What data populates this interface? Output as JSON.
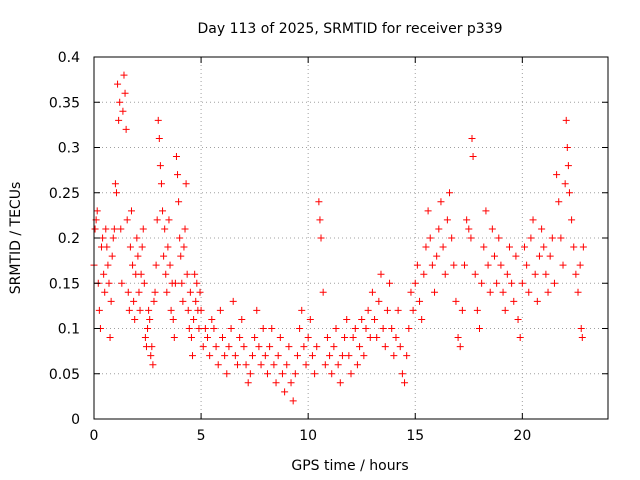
{
  "chart_data": {
    "type": "scatter",
    "title": "Day 113 of 2025, SRMTID for receiver p339",
    "xlabel": "GPS time / hours",
    "ylabel": "SRMTID / TECUs",
    "xlim": [
      0,
      24
    ],
    "ylim": [
      0,
      0.4
    ],
    "x_ticks": [
      0,
      5,
      10,
      15,
      20
    ],
    "x_tick_labels": [
      "0",
      "5",
      "10",
      "15",
      "20"
    ],
    "y_ticks": [
      0,
      0.05,
      0.1,
      0.15,
      0.2,
      0.25,
      0.3,
      0.35,
      0.4
    ],
    "y_tick_labels": [
      "0",
      "0.05",
      "0.1",
      "0.15",
      "0.2",
      "0.25",
      "0.3",
      "0.35",
      "0.4"
    ],
    "grid": true,
    "marker": "+",
    "colors": {
      "marker": "#ff0000",
      "grid": "#a0a0a0",
      "axis": "#000000"
    },
    "series": [
      {
        "name": "SRMTID",
        "points": [
          [
            0.0,
            0.17
          ],
          [
            0.05,
            0.21
          ],
          [
            0.1,
            0.22
          ],
          [
            0.15,
            0.23
          ],
          [
            0.2,
            0.15
          ],
          [
            0.25,
            0.12
          ],
          [
            0.3,
            0.1
          ],
          [
            0.35,
            0.19
          ],
          [
            0.4,
            0.2
          ],
          [
            0.45,
            0.16
          ],
          [
            0.5,
            0.14
          ],
          [
            0.55,
            0.21
          ],
          [
            0.6,
            0.19
          ],
          [
            0.65,
            0.17
          ],
          [
            0.7,
            0.15
          ],
          [
            0.75,
            0.09
          ],
          [
            0.8,
            0.13
          ],
          [
            0.85,
            0.18
          ],
          [
            0.9,
            0.2
          ],
          [
            0.95,
            0.21
          ],
          [
            1.0,
            0.26
          ],
          [
            1.05,
            0.25
          ],
          [
            1.1,
            0.37
          ],
          [
            1.15,
            0.33
          ],
          [
            1.2,
            0.35
          ],
          [
            1.25,
            0.21
          ],
          [
            1.3,
            0.15
          ],
          [
            1.35,
            0.34
          ],
          [
            1.4,
            0.38
          ],
          [
            1.45,
            0.36
          ],
          [
            1.5,
            0.32
          ],
          [
            1.55,
            0.22
          ],
          [
            1.6,
            0.14
          ],
          [
            1.65,
            0.12
          ],
          [
            1.7,
            0.19
          ],
          [
            1.75,
            0.23
          ],
          [
            1.8,
            0.17
          ],
          [
            1.85,
            0.13
          ],
          [
            1.9,
            0.11
          ],
          [
            1.95,
            0.16
          ],
          [
            2.0,
            0.2
          ],
          [
            2.05,
            0.18
          ],
          [
            2.1,
            0.14
          ],
          [
            2.15,
            0.12
          ],
          [
            2.2,
            0.16
          ],
          [
            2.25,
            0.19
          ],
          [
            2.3,
            0.21
          ],
          [
            2.35,
            0.15
          ],
          [
            2.4,
            0.09
          ],
          [
            2.45,
            0.08
          ],
          [
            2.5,
            0.1
          ],
          [
            2.55,
            0.12
          ],
          [
            2.6,
            0.11
          ],
          [
            2.65,
            0.07
          ],
          [
            2.7,
            0.08
          ],
          [
            2.75,
            0.06
          ],
          [
            2.8,
            0.13
          ],
          [
            2.85,
            0.14
          ],
          [
            2.9,
            0.17
          ],
          [
            2.95,
            0.22
          ],
          [
            3.0,
            0.33
          ],
          [
            3.05,
            0.31
          ],
          [
            3.1,
            0.28
          ],
          [
            3.15,
            0.26
          ],
          [
            3.2,
            0.23
          ],
          [
            3.25,
            0.18
          ],
          [
            3.3,
            0.21
          ],
          [
            3.35,
            0.16
          ],
          [
            3.4,
            0.14
          ],
          [
            3.45,
            0.19
          ],
          [
            3.5,
            0.22
          ],
          [
            3.55,
            0.17
          ],
          [
            3.6,
            0.12
          ],
          [
            3.65,
            0.15
          ],
          [
            3.7,
            0.11
          ],
          [
            3.75,
            0.09
          ],
          [
            3.8,
            0.15
          ],
          [
            3.85,
            0.29
          ],
          [
            3.9,
            0.27
          ],
          [
            3.95,
            0.24
          ],
          [
            4.0,
            0.2
          ],
          [
            4.05,
            0.18
          ],
          [
            4.1,
            0.15
          ],
          [
            4.15,
            0.13
          ],
          [
            4.2,
            0.19
          ],
          [
            4.25,
            0.21
          ],
          [
            4.3,
            0.26
          ],
          [
            4.35,
            0.16
          ],
          [
            4.4,
            0.12
          ],
          [
            4.45,
            0.1
          ],
          [
            4.5,
            0.14
          ],
          [
            4.55,
            0.09
          ],
          [
            4.6,
            0.07
          ],
          [
            4.65,
            0.11
          ],
          [
            4.7,
            0.16
          ],
          [
            4.75,
            0.13
          ],
          [
            4.8,
            0.15
          ],
          [
            4.85,
            0.12
          ],
          [
            4.9,
            0.1
          ],
          [
            4.95,
            0.14
          ],
          [
            5.0,
            0.12
          ],
          [
            5.1,
            0.08
          ],
          [
            5.2,
            0.1
          ],
          [
            5.3,
            0.09
          ],
          [
            5.4,
            0.07
          ],
          [
            5.5,
            0.11
          ],
          [
            5.6,
            0.1
          ],
          [
            5.7,
            0.08
          ],
          [
            5.8,
            0.06
          ],
          [
            5.9,
            0.12
          ],
          [
            6.0,
            0.09
          ],
          [
            6.1,
            0.07
          ],
          [
            6.2,
            0.05
          ],
          [
            6.3,
            0.08
          ],
          [
            6.4,
            0.1
          ],
          [
            6.5,
            0.13
          ],
          [
            6.6,
            0.07
          ],
          [
            6.7,
            0.06
          ],
          [
            6.8,
            0.09
          ],
          [
            6.9,
            0.11
          ],
          [
            7.0,
            0.08
          ],
          [
            7.1,
            0.06
          ],
          [
            7.2,
            0.04
          ],
          [
            7.3,
            0.05
          ],
          [
            7.4,
            0.07
          ],
          [
            7.5,
            0.09
          ],
          [
            7.6,
            0.12
          ],
          [
            7.7,
            0.08
          ],
          [
            7.8,
            0.06
          ],
          [
            7.9,
            0.1
          ],
          [
            8.0,
            0.07
          ],
          [
            8.1,
            0.05
          ],
          [
            8.2,
            0.08
          ],
          [
            8.3,
            0.1
          ],
          [
            8.4,
            0.06
          ],
          [
            8.5,
            0.04
          ],
          [
            8.6,
            0.07
          ],
          [
            8.7,
            0.09
          ],
          [
            8.8,
            0.05
          ],
          [
            8.9,
            0.03
          ],
          [
            9.0,
            0.06
          ],
          [
            9.1,
            0.08
          ],
          [
            9.2,
            0.04
          ],
          [
            9.3,
            0.02
          ],
          [
            9.4,
            0.05
          ],
          [
            9.5,
            0.07
          ],
          [
            9.6,
            0.1
          ],
          [
            9.7,
            0.12
          ],
          [
            9.8,
            0.08
          ],
          [
            9.9,
            0.06
          ],
          [
            10.0,
            0.09
          ],
          [
            10.1,
            0.11
          ],
          [
            10.2,
            0.07
          ],
          [
            10.3,
            0.05
          ],
          [
            10.4,
            0.08
          ],
          [
            10.5,
            0.24
          ],
          [
            10.55,
            0.22
          ],
          [
            10.6,
            0.2
          ],
          [
            10.7,
            0.14
          ],
          [
            10.8,
            0.06
          ],
          [
            10.9,
            0.09
          ],
          [
            11.0,
            0.07
          ],
          [
            11.1,
            0.05
          ],
          [
            11.2,
            0.08
          ],
          [
            11.3,
            0.1
          ],
          [
            11.4,
            0.06
          ],
          [
            11.5,
            0.04
          ],
          [
            11.6,
            0.07
          ],
          [
            11.7,
            0.09
          ],
          [
            11.8,
            0.11
          ],
          [
            11.9,
            0.07
          ],
          [
            12.0,
            0.05
          ],
          [
            12.1,
            0.09
          ],
          [
            12.2,
            0.1
          ],
          [
            12.3,
            0.06
          ],
          [
            12.4,
            0.08
          ],
          [
            12.5,
            0.11
          ],
          [
            12.6,
            0.07
          ],
          [
            12.7,
            0.1
          ],
          [
            12.8,
            0.12
          ],
          [
            12.9,
            0.09
          ],
          [
            13.0,
            0.14
          ],
          [
            13.1,
            0.11
          ],
          [
            13.2,
            0.09
          ],
          [
            13.3,
            0.13
          ],
          [
            13.4,
            0.16
          ],
          [
            13.5,
            0.1
          ],
          [
            13.6,
            0.08
          ],
          [
            13.7,
            0.12
          ],
          [
            13.8,
            0.15
          ],
          [
            13.9,
            0.1
          ],
          [
            14.0,
            0.07
          ],
          [
            14.1,
            0.09
          ],
          [
            14.2,
            0.12
          ],
          [
            14.3,
            0.08
          ],
          [
            14.4,
            0.05
          ],
          [
            14.5,
            0.04
          ],
          [
            14.6,
            0.07
          ],
          [
            14.7,
            0.1
          ],
          [
            14.8,
            0.14
          ],
          [
            14.9,
            0.12
          ],
          [
            15.0,
            0.15
          ],
          [
            15.1,
            0.17
          ],
          [
            15.2,
            0.13
          ],
          [
            15.3,
            0.11
          ],
          [
            15.4,
            0.16
          ],
          [
            15.5,
            0.19
          ],
          [
            15.6,
            0.23
          ],
          [
            15.7,
            0.2
          ],
          [
            15.8,
            0.17
          ],
          [
            15.9,
            0.14
          ],
          [
            16.0,
            0.18
          ],
          [
            16.1,
            0.21
          ],
          [
            16.2,
            0.24
          ],
          [
            16.3,
            0.19
          ],
          [
            16.4,
            0.16
          ],
          [
            16.5,
            0.22
          ],
          [
            16.6,
            0.25
          ],
          [
            16.7,
            0.2
          ],
          [
            16.8,
            0.17
          ],
          [
            16.9,
            0.13
          ],
          [
            17.0,
            0.09
          ],
          [
            17.1,
            0.08
          ],
          [
            17.2,
            0.12
          ],
          [
            17.3,
            0.17
          ],
          [
            17.4,
            0.22
          ],
          [
            17.5,
            0.21
          ],
          [
            17.6,
            0.2
          ],
          [
            17.65,
            0.31
          ],
          [
            17.7,
            0.29
          ],
          [
            17.8,
            0.16
          ],
          [
            17.9,
            0.12
          ],
          [
            18.0,
            0.1
          ],
          [
            18.1,
            0.15
          ],
          [
            18.2,
            0.19
          ],
          [
            18.3,
            0.23
          ],
          [
            18.4,
            0.17
          ],
          [
            18.5,
            0.14
          ],
          [
            18.6,
            0.21
          ],
          [
            18.7,
            0.18
          ],
          [
            18.8,
            0.15
          ],
          [
            18.9,
            0.2
          ],
          [
            19.0,
            0.17
          ],
          [
            19.1,
            0.14
          ],
          [
            19.2,
            0.12
          ],
          [
            19.3,
            0.16
          ],
          [
            19.4,
            0.19
          ],
          [
            19.5,
            0.15
          ],
          [
            19.6,
            0.13
          ],
          [
            19.7,
            0.18
          ],
          [
            19.8,
            0.11
          ],
          [
            19.9,
            0.09
          ],
          [
            20.0,
            0.15
          ],
          [
            20.1,
            0.19
          ],
          [
            20.2,
            0.17
          ],
          [
            20.3,
            0.14
          ],
          [
            20.4,
            0.2
          ],
          [
            20.5,
            0.22
          ],
          [
            20.6,
            0.16
          ],
          [
            20.7,
            0.13
          ],
          [
            20.8,
            0.18
          ],
          [
            20.9,
            0.21
          ],
          [
            21.0,
            0.19
          ],
          [
            21.1,
            0.16
          ],
          [
            21.2,
            0.14
          ],
          [
            21.3,
            0.18
          ],
          [
            21.4,
            0.2
          ],
          [
            21.5,
            0.15
          ],
          [
            21.6,
            0.27
          ],
          [
            21.7,
            0.24
          ],
          [
            21.8,
            0.2
          ],
          [
            21.9,
            0.17
          ],
          [
            22.0,
            0.26
          ],
          [
            22.05,
            0.33
          ],
          [
            22.1,
            0.3
          ],
          [
            22.15,
            0.28
          ],
          [
            22.2,
            0.25
          ],
          [
            22.3,
            0.22
          ],
          [
            22.4,
            0.19
          ],
          [
            22.5,
            0.16
          ],
          [
            22.6,
            0.14
          ],
          [
            22.7,
            0.17
          ],
          [
            22.75,
            0.1
          ],
          [
            22.8,
            0.09
          ],
          [
            22.85,
            0.19
          ]
        ]
      }
    ]
  }
}
